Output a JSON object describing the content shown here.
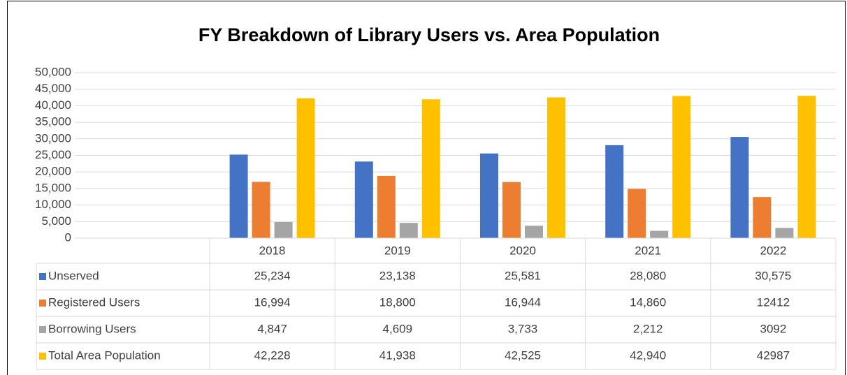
{
  "chart_data": {
    "type": "bar",
    "title": "FY Breakdown of Library Users vs. Area Population",
    "categories": [
      "2018",
      "2019",
      "2020",
      "2021",
      "2022"
    ],
    "series": [
      {
        "name": "Unserved",
        "color": "#4472c4",
        "values": [
          25234,
          23138,
          25581,
          28080,
          30575
        ],
        "value_labels": [
          "25,234",
          "23,138",
          "25,581",
          "28,080",
          "30,575"
        ]
      },
      {
        "name": "Registered Users",
        "color": "#ed7d31",
        "values": [
          16994,
          18800,
          16944,
          14860,
          12412
        ],
        "value_labels": [
          "16,994",
          "18,800",
          "16,944",
          "14,860",
          "12412"
        ]
      },
      {
        "name": "Borrowing Users",
        "color": "#a5a5a5",
        "values": [
          4847,
          4609,
          3733,
          2212,
          3092
        ],
        "value_labels": [
          "4,847",
          "4,609",
          "3,733",
          "2,212",
          "3092"
        ]
      },
      {
        "name": "Total Area Population",
        "color": "#ffc000",
        "values": [
          42228,
          41938,
          42525,
          42940,
          42987
        ],
        "value_labels": [
          "42,228",
          "41,938",
          "42,525",
          "42,940",
          "42987"
        ]
      }
    ],
    "ylim": [
      0,
      50000
    ],
    "yticks": [
      0,
      {
        "value": 5000,
        "label": "5,000"
      },
      {
        "value": 10000,
        "label": "10,000"
      },
      {
        "value": 15000,
        "label": "15,000"
      },
      {
        "value": 20000,
        "label": "20,000"
      },
      {
        "value": 25000,
        "label": "25,000"
      },
      {
        "value": 30000,
        "label": "30,000"
      },
      {
        "value": 35000,
        "label": "35,000"
      },
      {
        "value": 40000,
        "label": "40,000"
      },
      {
        "value": 45000,
        "label": "45,000"
      },
      {
        "value": 50000,
        "label": "50,000"
      }
    ],
    "grid": true
  }
}
